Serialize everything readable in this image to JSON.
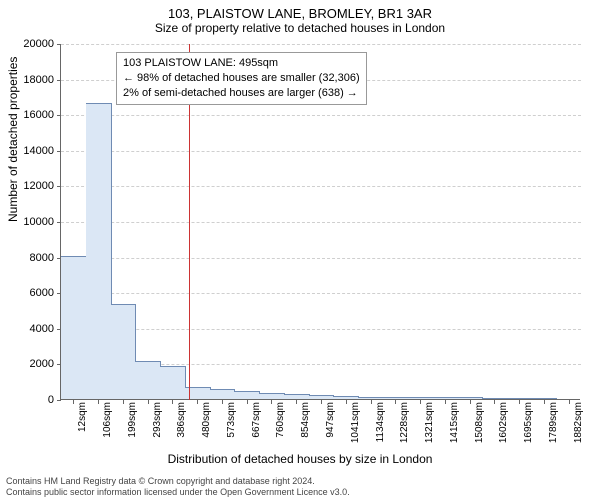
{
  "title": "103, PLAISTOW LANE, BROMLEY, BR1 3AR",
  "subtitle": "Size of property relative to detached houses in London",
  "y_axis_label": "Number of detached properties",
  "x_axis_label": "Distribution of detached houses by size in London",
  "chart": {
    "type": "histogram",
    "ylim": [
      0,
      20000
    ],
    "ytick_step": 2000,
    "yticks": [
      0,
      2000,
      4000,
      6000,
      8000,
      10000,
      12000,
      14000,
      16000,
      18000,
      20000
    ],
    "xticks": [
      "12sqm",
      "106sqm",
      "199sqm",
      "293sqm",
      "386sqm",
      "480sqm",
      "573sqm",
      "667sqm",
      "760sqm",
      "854sqm",
      "947sqm",
      "1041sqm",
      "1134sqm",
      "1228sqm",
      "1321sqm",
      "1415sqm",
      "1508sqm",
      "1602sqm",
      "1695sqm",
      "1789sqm",
      "1882sqm"
    ],
    "bars": [
      8000,
      16600,
      5300,
      2100,
      1800,
      600,
      500,
      400,
      300,
      200,
      150,
      100,
      80,
      60,
      50,
      40,
      30,
      20,
      15,
      10
    ],
    "bar_fill": "#dbe7f5",
    "bar_stroke": "#6f8bb3",
    "bar_width_ratio": 1.0,
    "grid_color": "#cfcfcf",
    "axis_color": "#666666",
    "background": "#ffffff"
  },
  "marker": {
    "position_sqm": 495,
    "color": "#cc3333",
    "annotation_lines": [
      "103 PLAISTOW LANE: 495sqm",
      "← 98% of detached houses are smaller (32,306)",
      "2% of semi-detached houses are larger (638) →"
    ]
  },
  "footer": {
    "line1": "Contains HM Land Registry data © Crown copyright and database right 2024.",
    "line2": "Contains public sector information licensed under the Open Government Licence v3.0."
  }
}
